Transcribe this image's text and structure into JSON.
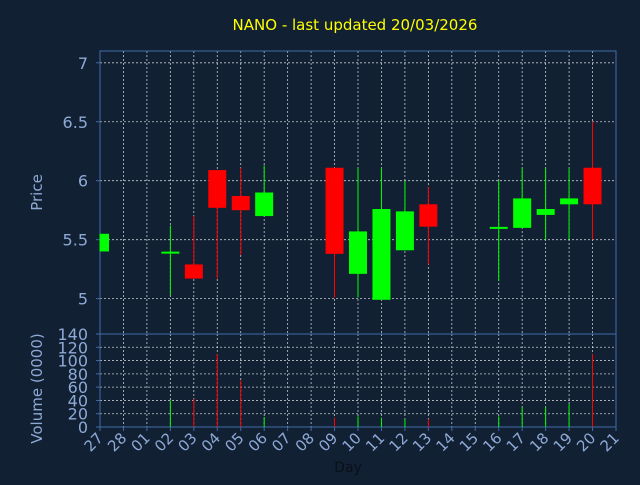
{
  "title": "NANO - last updated 20/03/2026",
  "colors": {
    "background": "#112033",
    "title": "#ffff00",
    "axis_text": "#8fa9d6",
    "frame": "#3f6ca8",
    "grid": "#ffffff",
    "up": "#00ff00",
    "down": "#ff0000"
  },
  "chart_data": [
    {
      "type": "candlestick",
      "title": "NANO - last updated 20/03/2026",
      "ylabel": "Price",
      "ylim": [
        4.7,
        7.1
      ],
      "yticks": [
        5,
        5.5,
        6,
        6.5,
        7
      ],
      "grid": true,
      "categories": [
        "27",
        "28",
        "01",
        "02",
        "03",
        "04",
        "05",
        "06",
        "07",
        "08",
        "09",
        "10",
        "11",
        "12",
        "13",
        "14",
        "15",
        "16",
        "17",
        "18",
        "19",
        "20",
        "21"
      ],
      "candles": [
        {
          "day": "27",
          "open": 5.4,
          "close": 5.55,
          "high": 5.55,
          "low": 5.4
        },
        {
          "day": "02",
          "open": 5.38,
          "close": 5.39,
          "high": 5.62,
          "low": 5.03
        },
        {
          "day": "03",
          "open": 5.29,
          "close": 5.17,
          "high": 5.7,
          "low": 5.17
        },
        {
          "day": "04",
          "open": 6.09,
          "close": 5.77,
          "high": 6.09,
          "low": 5.17
        },
        {
          "day": "05",
          "open": 5.87,
          "close": 5.75,
          "high": 6.11,
          "low": 5.37
        },
        {
          "day": "06",
          "open": 5.7,
          "close": 5.9,
          "high": 6.13,
          "low": 5.7
        },
        {
          "day": "09",
          "open": 6.11,
          "close": 5.38,
          "high": 6.11,
          "low": 5.01
        },
        {
          "day": "10",
          "open": 5.21,
          "close": 5.57,
          "high": 6.11,
          "low": 5.01
        },
        {
          "day": "11",
          "open": 4.99,
          "close": 5.76,
          "high": 6.11,
          "low": 4.99
        },
        {
          "day": "12",
          "open": 5.41,
          "close": 5.74,
          "high": 6.0,
          "low": 5.41
        },
        {
          "day": "13",
          "open": 5.8,
          "close": 5.61,
          "high": 5.95,
          "low": 5.29
        },
        {
          "day": "16",
          "open": 5.59,
          "close": 5.6,
          "high": 6.0,
          "low": 5.15
        },
        {
          "day": "17",
          "open": 5.6,
          "close": 5.85,
          "high": 6.11,
          "low": 5.6
        },
        {
          "day": "18",
          "open": 5.71,
          "close": 5.76,
          "high": 6.11,
          "low": 5.5
        },
        {
          "day": "19",
          "open": 5.8,
          "close": 5.85,
          "high": 6.11,
          "low": 5.5
        },
        {
          "day": "20",
          "open": 6.11,
          "close": 5.8,
          "high": 6.5,
          "low": 5.5
        }
      ]
    },
    {
      "type": "bar",
      "ylabel": "Volume (0000)",
      "xlabel": "Day",
      "ylim": [
        0,
        140
      ],
      "yticks": [
        0,
        20,
        40,
        60,
        80,
        100,
        120,
        140
      ],
      "grid": true,
      "categories": [
        "27",
        "28",
        "01",
        "02",
        "03",
        "04",
        "05",
        "06",
        "07",
        "08",
        "09",
        "10",
        "11",
        "12",
        "13",
        "14",
        "15",
        "16",
        "17",
        "18",
        "19",
        "20",
        "21"
      ],
      "bars": [
        {
          "day": "02",
          "value": 40,
          "direction": "up"
        },
        {
          "day": "03",
          "value": 42,
          "direction": "down"
        },
        {
          "day": "04",
          "value": 110,
          "direction": "down"
        },
        {
          "day": "05",
          "value": 70,
          "direction": "down"
        },
        {
          "day": "06",
          "value": 15,
          "direction": "up"
        },
        {
          "day": "09",
          "value": 14,
          "direction": "down"
        },
        {
          "day": "10",
          "value": 16,
          "direction": "up"
        },
        {
          "day": "11",
          "value": 14,
          "direction": "up"
        },
        {
          "day": "12",
          "value": 12,
          "direction": "up"
        },
        {
          "day": "13",
          "value": 12,
          "direction": "down"
        },
        {
          "day": "16",
          "value": 16,
          "direction": "up"
        },
        {
          "day": "17",
          "value": 30,
          "direction": "up"
        },
        {
          "day": "18",
          "value": 30,
          "direction": "up"
        },
        {
          "day": "19",
          "value": 35,
          "direction": "up"
        },
        {
          "day": "20",
          "value": 110,
          "direction": "down"
        }
      ]
    }
  ]
}
